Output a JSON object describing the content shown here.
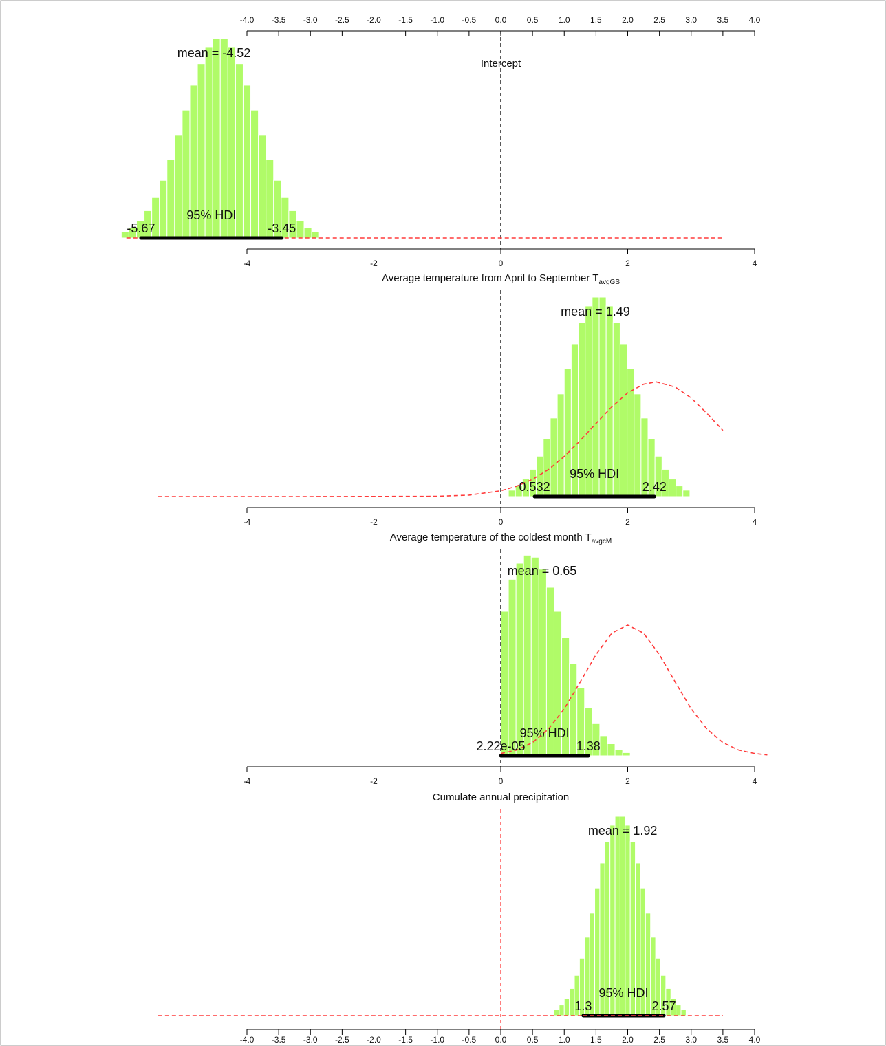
{
  "chart_data": [
    {
      "type": "histogram",
      "title": "Intercept",
      "bins": [
        -5.98,
        -5.86,
        -5.74,
        -5.62,
        -5.5,
        -5.38,
        -5.26,
        -5.14,
        -5.02,
        -4.9,
        -4.78,
        -4.66,
        -4.54,
        -4.42,
        -4.3,
        -4.18,
        -4.06,
        -3.94,
        -3.82,
        -3.7,
        -3.58,
        -3.46,
        -3.34,
        -3.22,
        -3.1,
        -2.98,
        -2.86
      ],
      "counts": [
        0.022,
        0.037,
        0.061,
        0.095,
        0.141,
        0.201,
        0.274,
        0.358,
        0.446,
        0.533,
        0.608,
        0.665,
        0.696,
        0.696,
        0.665,
        0.608,
        0.533,
        0.446,
        0.358,
        0.274,
        0.201,
        0.141,
        0.095,
        0.061,
        0.037,
        0.022
      ],
      "color": "#b0fb68",
      "xlim": [
        -4,
        4
      ],
      "ylim": [
        0,
        0.72
      ],
      "x2ticks": [
        {
          "value": -4,
          "label": "-4.0"
        },
        -3.5,
        {
          "value": -3,
          "label": "-3.0"
        },
        -2.5,
        {
          "value": -2,
          "label": "-2.0"
        },
        -1.5,
        {
          "value": -1,
          "label": "-1.0"
        },
        -0.5,
        {
          "value": 0,
          "label": "0.0"
        },
        0.5,
        {
          "value": 1,
          "label": "1.0"
        },
        1.5,
        {
          "value": 2,
          "label": "2.0"
        },
        2.5,
        {
          "value": 3,
          "label": "3.0"
        },
        3.5,
        {
          "value": 4,
          "label": "4.0"
        }
      ],
      "xticks": [
        -4,
        -2,
        0,
        2,
        4
      ],
      "mean": -4.52,
      "mean_label": "mean = -4.52",
      "hdi": [
        -5.67,
        -3.45
      ],
      "hdi_title": "95% HDI",
      "prior_x": [
        -5.9,
        3.5
      ],
      "prior_y": [
        0,
        0
      ],
      "prior_color": "#ff3b3b",
      "zero_line_color": "#000000"
    },
    {
      "type": "histogram",
      "title": "Average temperature from April to September T",
      "title_sub": "avgGS",
      "bins": [
        0.12,
        0.23,
        0.34,
        0.45,
        0.56,
        0.67,
        0.78,
        0.89,
        1.0,
        1.11,
        1.22,
        1.33,
        1.44,
        1.55,
        1.66,
        1.77,
        1.88,
        1.99,
        2.1,
        2.21,
        2.32,
        2.43,
        2.54,
        2.65,
        2.76,
        2.87,
        2.98
      ],
      "counts": [
        0.022,
        0.037,
        0.061,
        0.095,
        0.141,
        0.201,
        0.274,
        0.358,
        0.446,
        0.533,
        0.608,
        0.665,
        0.696,
        0.696,
        0.665,
        0.608,
        0.533,
        0.446,
        0.358,
        0.274,
        0.201,
        0.141,
        0.095,
        0.061,
        0.037,
        0.022
      ],
      "color": "#b0fb68",
      "xlim": [
        -4,
        4
      ],
      "ylim": [
        0,
        0.72
      ],
      "xticks": [
        -4,
        -2,
        0,
        2,
        4
      ],
      "mean": 1.49,
      "mean_label": "mean = 1.49",
      "hdi": [
        0.532,
        2.42
      ],
      "hdi_title": "95% HDI",
      "prior_x": [
        -5.4,
        -3,
        -1,
        -0.5,
        0,
        0.25,
        0.5,
        0.75,
        1,
        1.25,
        1.5,
        1.75,
        2,
        2.25,
        2.45,
        2.75,
        3,
        3.25,
        3.5
      ],
      "prior_y": [
        0,
        0,
        0.001,
        0.005,
        0.02,
        0.036,
        0.06,
        0.094,
        0.14,
        0.195,
        0.255,
        0.313,
        0.362,
        0.392,
        0.4,
        0.382,
        0.344,
        0.29,
        0.231
      ],
      "prior_color": "#ff3b3b",
      "zero_line_color": "#000000"
    },
    {
      "type": "histogram",
      "title": "Average temperature of the coldest month T",
      "title_sub": "avgcM",
      "bins": [
        0,
        0.12,
        0.24,
        0.36,
        0.48,
        0.6,
        0.72,
        0.84,
        0.96,
        1.08,
        1.2,
        1.32,
        1.44,
        1.56,
        1.68,
        1.8,
        1.92,
        2.04
      ],
      "counts": [
        0.504,
        0.616,
        0.672,
        0.7,
        0.693,
        0.651,
        0.588,
        0.504,
        0.413,
        0.322,
        0.238,
        0.168,
        0.112,
        0.07,
        0.042,
        0.021,
        0.011
      ],
      "color": "#b0fb68",
      "xlim": [
        -4,
        4
      ],
      "ylim": [
        0,
        0.72
      ],
      "xticks": [
        -4,
        -2,
        0,
        2,
        4
      ],
      "mean": 0.65,
      "mean_label": "mean = 0.65",
      "hdi": [
        2.22e-05,
        1.38
      ],
      "hdi_labels": [
        "2.22e-05",
        "1.38"
      ],
      "hdi_title": "95% HDI",
      "prior_x": [
        0,
        0.25,
        0.5,
        0.75,
        1,
        1.25,
        1.5,
        1.75,
        2,
        2.25,
        2.5,
        2.75,
        3,
        3.25,
        3.5,
        3.75,
        4,
        4.2
      ],
      "prior_y": [
        0.008,
        0.02,
        0.046,
        0.093,
        0.164,
        0.257,
        0.353,
        0.428,
        0.456,
        0.428,
        0.353,
        0.257,
        0.164,
        0.093,
        0.046,
        0.02,
        0.008,
        0.003
      ],
      "prior_color": "#ff3b3b",
      "zero_line_color": "#000000"
    },
    {
      "type": "histogram",
      "title": "Cumulate annual precipitation",
      "bins": [
        0.84,
        0.92,
        1.0,
        1.08,
        1.16,
        1.24,
        1.32,
        1.4,
        1.48,
        1.56,
        1.64,
        1.72,
        1.8,
        1.88,
        1.96,
        2.04,
        2.12,
        2.2,
        2.28,
        2.36,
        2.44,
        2.52,
        2.6,
        2.68,
        2.76,
        2.84,
        2.92
      ],
      "counts": [
        0.022,
        0.037,
        0.061,
        0.095,
        0.141,
        0.201,
        0.274,
        0.358,
        0.446,
        0.533,
        0.608,
        0.665,
        0.696,
        0.696,
        0.665,
        0.608,
        0.533,
        0.446,
        0.358,
        0.274,
        0.201,
        0.141,
        0.095,
        0.061,
        0.037,
        0.022
      ],
      "color": "#b0fb68",
      "xlim": [
        -4,
        4
      ],
      "ylim": [
        0,
        0.72
      ],
      "xticks": [
        {
          "value": -4,
          "label": "-4.0"
        },
        -3.5,
        {
          "value": -3,
          "label": "-3.0"
        },
        -2.5,
        {
          "value": -2,
          "label": "-2.0"
        },
        -1.5,
        {
          "value": -1,
          "label": "-1.0"
        },
        -0.5,
        {
          "value": 0,
          "label": "0.0"
        },
        0.5,
        {
          "value": 1,
          "label": "1.0"
        },
        1.5,
        {
          "value": 2,
          "label": "2.0"
        },
        2.5,
        {
          "value": 3,
          "label": "3.0"
        },
        3.5,
        {
          "value": 4,
          "label": "4.0"
        }
      ],
      "mean": 1.92,
      "mean_label": "mean = 1.92",
      "hdi": [
        1.3,
        2.57
      ],
      "hdi_title": "95% HDI",
      "prior_x": [
        -5.4,
        3.5
      ],
      "prior_y": [
        0,
        0
      ],
      "prior_color": "#ff3b3b",
      "zero_line_color": "#ff3b3b"
    }
  ]
}
